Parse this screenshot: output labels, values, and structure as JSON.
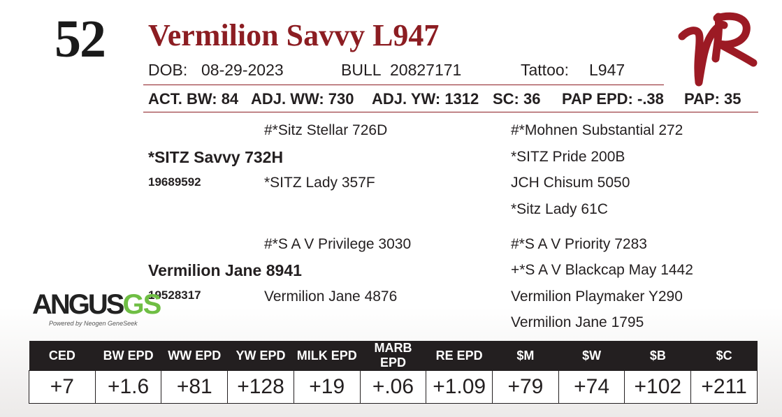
{
  "lot_number": "52",
  "animal_name": "Vermilion Savvy L947",
  "dob_label": "DOB:",
  "dob_value": "08-29-2023",
  "sex": "BULL",
  "registration": "20827171",
  "tattoo_label": "Tattoo:",
  "tattoo_value": "L947",
  "performance": {
    "act_bw": "ACT. BW: 84",
    "adj_ww": "ADJ. WW: 730",
    "adj_yw": "ADJ. YW: 1312",
    "sc": "SC: 36",
    "pap_epd": "PAP EPD: -.38",
    "pap": "PAP: 35"
  },
  "pedigree": {
    "sire": {
      "name": "*SITZ Savvy 732H",
      "reg": "19689592"
    },
    "sire_sire": "#*Sitz Stellar 726D",
    "sire_dam": "*SITZ Lady 357F",
    "sire_sire_sire": "#*Mohnen Substantial 272",
    "sire_sire_dam": "*SITZ Pride 200B",
    "sire_dam_sire": "JCH Chisum 5050",
    "sire_dam_dam": "*Sitz Lady 61C",
    "dam": {
      "name": "Vermilion Jane 8941",
      "reg": "19528317"
    },
    "dam_sire": "#*S A V Privilege 3030",
    "dam_dam": "Vermilion Jane 4876",
    "dam_sire_sire": "#*S A V Priority 7283",
    "dam_sire_dam": "+*S A V Blackcap May 1442",
    "dam_dam_sire": "Vermilion Playmaker Y290",
    "dam_dam_dam": "Vermilion Jane 1795"
  },
  "logos": {
    "angus_word": "ANGUS",
    "angus_gs": "GS",
    "angus_sub": "Powered by Neogen GeneSeek"
  },
  "epds": {
    "headers": [
      "CED",
      "BW EPD",
      "WW EPD",
      "YW EPD",
      "MILK EPD",
      "MARB EPD",
      "RE EPD",
      "$M",
      "$W",
      "$B",
      "$C"
    ],
    "values": [
      "+7",
      "+1.6",
      "+81",
      "+128",
      "+19",
      "+.06",
      "+1.09",
      "+79",
      "+74",
      "+102",
      "+211"
    ]
  },
  "colors": {
    "accent": "#8c1d22",
    "text": "#231f20",
    "angus_green": "#6fbe44"
  }
}
